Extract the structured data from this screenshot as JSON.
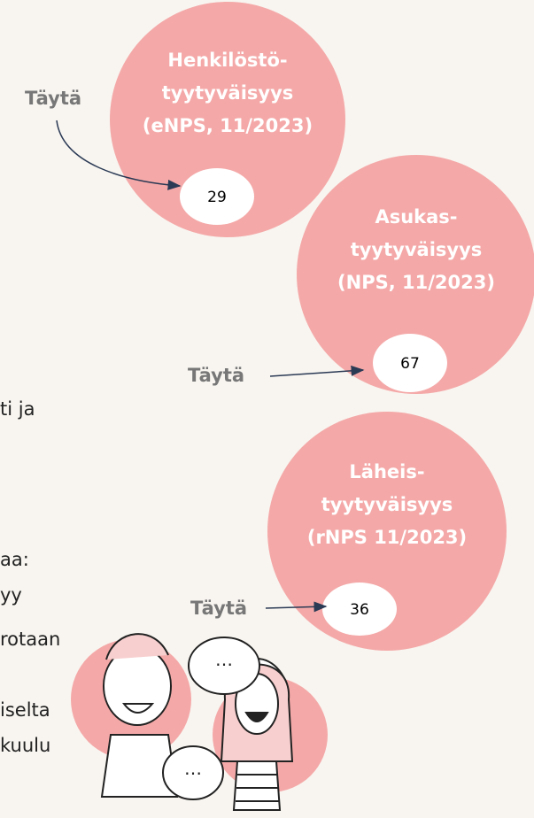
{
  "circles": [
    {
      "lines": [
        "Henkilöstö-",
        "tyytyväisyys",
        "(eNPS, 11/2023)"
      ],
      "value": 29,
      "fill_label": "Täytä"
    },
    {
      "lines": [
        "Asukas-",
        "tyytyväisyys",
        "(NPS, 11/2023)"
      ],
      "value": 67,
      "fill_label": "Täytä"
    },
    {
      "lines": [
        "Läheis-",
        "tyytyväisyys",
        "(rNPS 11/2023)"
      ],
      "value": 36,
      "fill_label": "Täytä"
    }
  ],
  "body_fragments": [
    "ti ja",
    "aa:",
    "yy",
    "rotaan",
    "iselta",
    "kuulu"
  ]
}
